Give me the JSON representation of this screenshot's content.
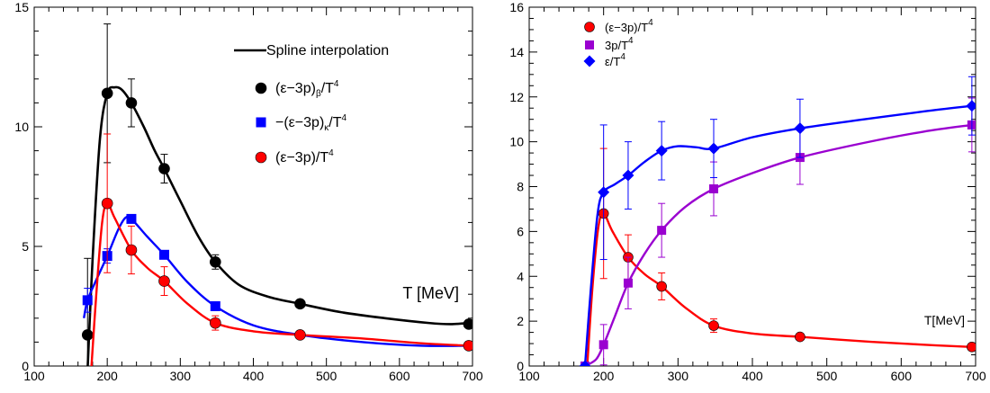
{
  "chart_data": [
    {
      "type": "line",
      "xlabel": "T [MeV]",
      "ylabel": "",
      "xlim": [
        100,
        700
      ],
      "ylim": [
        0,
        15
      ],
      "x_ticks": [
        "100",
        "200",
        "300",
        "400",
        "500",
        "600",
        "700"
      ],
      "y_ticks": [
        "0",
        "5",
        "10",
        "15"
      ],
      "legend_position": "top-right",
      "legend": [
        {
          "label": "Spline interpolation",
          "marker": "line",
          "color": "#000000"
        },
        {
          "main": "(ε−3p)",
          "sub": "β",
          "tail": "/T",
          "sup": "4",
          "marker": "circle",
          "color": "#000000"
        },
        {
          "main": "−(ε−3p)",
          "sub": "κ",
          "tail": "/T",
          "sup": "4",
          "marker": "square",
          "color": "#0000ff"
        },
        {
          "main": "(ε−3p)/T",
          "sub": "",
          "tail": "",
          "sup": "4",
          "marker": "circle",
          "color": "#ff0000"
        }
      ],
      "series": [
        {
          "marker": "circle",
          "color": "#000000",
          "points": [
            {
              "x": 173,
              "y": 1.3,
              "err": 3.2
            },
            {
              "x": 200,
              "y": 11.4,
              "err": 2.9
            },
            {
              "x": 233,
              "y": 11.0,
              "err": 1.0
            },
            {
              "x": 278,
              "y": 8.25,
              "err": 0.6
            },
            {
              "x": 348,
              "y": 4.35,
              "err": 0.3
            },
            {
              "x": 464,
              "y": 2.6,
              "err": 0.1
            },
            {
              "x": 695,
              "y": 1.75,
              "err": 0.1
            }
          ],
          "spline": [
            [
              173,
              -0.2
            ],
            [
              180,
              4.5
            ],
            [
              190,
              9.5
            ],
            [
              200,
              11.4
            ],
            [
              210,
              11.65
            ],
            [
              220,
              11.55
            ],
            [
              233,
              11.0
            ],
            [
              250,
              10.0
            ],
            [
              265,
              9.0
            ],
            [
              278,
              8.25
            ],
            [
              300,
              6.9
            ],
            [
              325,
              5.4
            ],
            [
              348,
              4.35
            ],
            [
              380,
              3.4
            ],
            [
              420,
              2.9
            ],
            [
              464,
              2.6
            ],
            [
              520,
              2.25
            ],
            [
              580,
              2.0
            ],
            [
              640,
              1.8
            ],
            [
              670,
              1.75
            ],
            [
              695,
              1.8
            ]
          ]
        },
        {
          "marker": "square",
          "color": "#0000ff",
          "points": [
            {
              "x": 173,
              "y": 2.75,
              "err": 0.5
            },
            {
              "x": 200,
              "y": 4.6,
              "err": 0.3
            },
            {
              "x": 233,
              "y": 6.15,
              "err": 0.15
            },
            {
              "x": 278,
              "y": 4.65,
              "err": 0.1
            },
            {
              "x": 348,
              "y": 2.5,
              "err": 0.1
            }
          ],
          "spline": [
            [
              168,
              2.0
            ],
            [
              173,
              2.75
            ],
            [
              185,
              3.6
            ],
            [
              200,
              4.6
            ],
            [
              215,
              5.7
            ],
            [
              225,
              6.2
            ],
            [
              233,
              6.15
            ],
            [
              255,
              5.4
            ],
            [
              278,
              4.65
            ],
            [
              310,
              3.5
            ],
            [
              348,
              2.5
            ],
            [
              400,
              1.7
            ],
            [
              464,
              1.3
            ],
            [
              550,
              1.0
            ],
            [
              630,
              0.85
            ],
            [
              695,
              0.85
            ]
          ]
        },
        {
          "marker": "circle",
          "color": "#ff0000",
          "points": [
            {
              "x": 200,
              "y": 6.8,
              "err": 2.9
            },
            {
              "x": 233,
              "y": 4.85,
              "err": 1.0
            },
            {
              "x": 278,
              "y": 3.55,
              "err": 0.6
            },
            {
              "x": 348,
              "y": 1.8,
              "err": 0.3
            },
            {
              "x": 464,
              "y": 1.3,
              "err": 0.1
            },
            {
              "x": 695,
              "y": 0.85,
              "err": 0.1
            }
          ],
          "spline": [
            [
              178,
              -0.2
            ],
            [
              185,
              3.0
            ],
            [
              193,
              6.0
            ],
            [
              200,
              6.8
            ],
            [
              210,
              6.2
            ],
            [
              233,
              4.85
            ],
            [
              255,
              4.1
            ],
            [
              278,
              3.55
            ],
            [
              310,
              2.6
            ],
            [
              348,
              1.8
            ],
            [
              400,
              1.45
            ],
            [
              464,
              1.3
            ],
            [
              550,
              1.15
            ],
            [
              630,
              0.95
            ],
            [
              695,
              0.85
            ]
          ]
        }
      ]
    },
    {
      "type": "line",
      "xlabel": "T[MeV]",
      "ylabel": "",
      "xlim": [
        100,
        700
      ],
      "ylim": [
        0,
        16
      ],
      "x_ticks": [
        "100",
        "200",
        "300",
        "400",
        "500",
        "600",
        "700"
      ],
      "y_ticks": [
        "0",
        "2",
        "4",
        "6",
        "8",
        "10",
        "12",
        "14",
        "16"
      ],
      "legend_position": "top-left",
      "legend": [
        {
          "main": "(ε−3p)/T",
          "sub": "",
          "tail": "",
          "sup": "4",
          "marker": "circle",
          "color": "#ff0000"
        },
        {
          "main": "3p/T",
          "sub": "",
          "tail": "",
          "sup": "4",
          "marker": "square",
          "color": "#9a00d0"
        },
        {
          "main": "ε/T",
          "sub": "",
          "tail": "",
          "sup": "4",
          "marker": "diamond",
          "color": "#0000ff"
        }
      ],
      "series": [
        {
          "marker": "circle",
          "color": "#ff0000",
          "points": [
            {
              "x": 200,
              "y": 6.8,
              "err": 2.9
            },
            {
              "x": 233,
              "y": 4.85,
              "err": 1.0
            },
            {
              "x": 278,
              "y": 3.55,
              "err": 0.6
            },
            {
              "x": 348,
              "y": 1.8,
              "err": 0.3
            },
            {
              "x": 464,
              "y": 1.3,
              "err": 0.1
            },
            {
              "x": 695,
              "y": 0.85,
              "err": 0.1
            }
          ],
          "spline": [
            [
              178,
              0.0
            ],
            [
              185,
              3.5
            ],
            [
              193,
              6.2
            ],
            [
              200,
              6.8
            ],
            [
              212,
              6.0
            ],
            [
              233,
              4.85
            ],
            [
              255,
              4.1
            ],
            [
              278,
              3.55
            ],
            [
              310,
              2.6
            ],
            [
              348,
              1.8
            ],
            [
              400,
              1.45
            ],
            [
              464,
              1.3
            ],
            [
              550,
              1.1
            ],
            [
              630,
              0.95
            ],
            [
              695,
              0.85
            ]
          ]
        },
        {
          "marker": "square",
          "color": "#9a00d0",
          "points": [
            {
              "x": 175,
              "y": 0.0,
              "err": 0.0
            },
            {
              "x": 200,
              "y": 0.95,
              "err": 0.9
            },
            {
              "x": 233,
              "y": 3.7,
              "err": 1.15
            },
            {
              "x": 278,
              "y": 6.05,
              "err": 1.2
            },
            {
              "x": 348,
              "y": 7.9,
              "err": 1.2
            },
            {
              "x": 464,
              "y": 9.3,
              "err": 1.2
            },
            {
              "x": 695,
              "y": 10.75,
              "err": 1.2
            }
          ],
          "spline": [
            [
              175,
              0.0
            ],
            [
              190,
              0.3
            ],
            [
              200,
              0.95
            ],
            [
              215,
              2.2
            ],
            [
              233,
              3.7
            ],
            [
              255,
              5.0
            ],
            [
              278,
              6.05
            ],
            [
              310,
              7.1
            ],
            [
              348,
              7.9
            ],
            [
              400,
              8.6
            ],
            [
              464,
              9.3
            ],
            [
              550,
              9.95
            ],
            [
              630,
              10.45
            ],
            [
              695,
              10.75
            ]
          ]
        },
        {
          "marker": "diamond",
          "color": "#0000ff",
          "points": [
            {
              "x": 175,
              "y": 0.0,
              "err": 0.0
            },
            {
              "x": 200,
              "y": 7.75,
              "err": 3.0
            },
            {
              "x": 233,
              "y": 8.5,
              "err": 1.5
            },
            {
              "x": 278,
              "y": 9.6,
              "err": 1.3
            },
            {
              "x": 348,
              "y": 9.7,
              "err": 1.3
            },
            {
              "x": 464,
              "y": 10.6,
              "err": 1.3
            },
            {
              "x": 695,
              "y": 11.6,
              "err": 1.3
            }
          ],
          "spline": [
            [
              175,
              0.0
            ],
            [
              183,
              3.5
            ],
            [
              192,
              6.8
            ],
            [
              200,
              7.75
            ],
            [
              215,
              8.1
            ],
            [
              233,
              8.5
            ],
            [
              255,
              9.1
            ],
            [
              278,
              9.6
            ],
            [
              300,
              9.8
            ],
            [
              325,
              9.75
            ],
            [
              348,
              9.7
            ],
            [
              400,
              10.2
            ],
            [
              464,
              10.6
            ],
            [
              550,
              11.0
            ],
            [
              630,
              11.35
            ],
            [
              695,
              11.6
            ]
          ]
        }
      ]
    }
  ]
}
